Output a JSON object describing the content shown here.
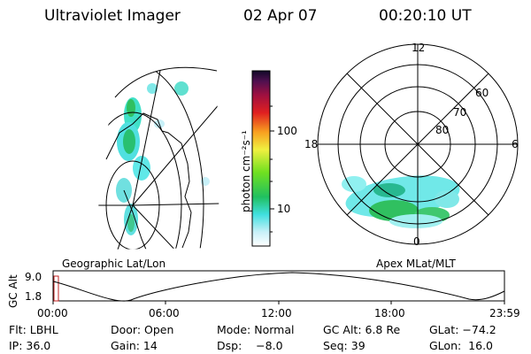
{
  "header": {
    "instrument": "Ultraviolet Imager",
    "date": "02 Apr 07",
    "time": "00:20:10 UT"
  },
  "colorbar": {
    "label": "photon cm⁻²s⁻¹",
    "ticks": [
      "100",
      "10"
    ]
  },
  "polar_plot": {
    "mlt_labels": [
      "12",
      "18",
      "6",
      "0"
    ],
    "lat_labels": [
      "60",
      "70",
      "80"
    ]
  },
  "map_label_left": "Geographic Lat/Lon",
  "map_label_right": "Apex MLat/MLT",
  "orbit_plot": {
    "ylabel": "GC Alt",
    "y_ticks": [
      "9.0",
      "1.8"
    ],
    "x_ticks": [
      "00:00",
      "06:00",
      "12:00",
      "18:00",
      "23:59"
    ]
  },
  "info": {
    "filter": "Flt: LBHL",
    "door": "Door: Open",
    "mode": "Mode: Normal",
    "gc_alt": "GC Alt: 6.8 Re",
    "glat": "GLat: −74.2",
    "ip": "IP: 36.0",
    "gain": "Gain: 14",
    "dsp": "Dsp:    −8.0",
    "seq": "Seq: 39",
    "glon": "GLon:  16.0"
  }
}
